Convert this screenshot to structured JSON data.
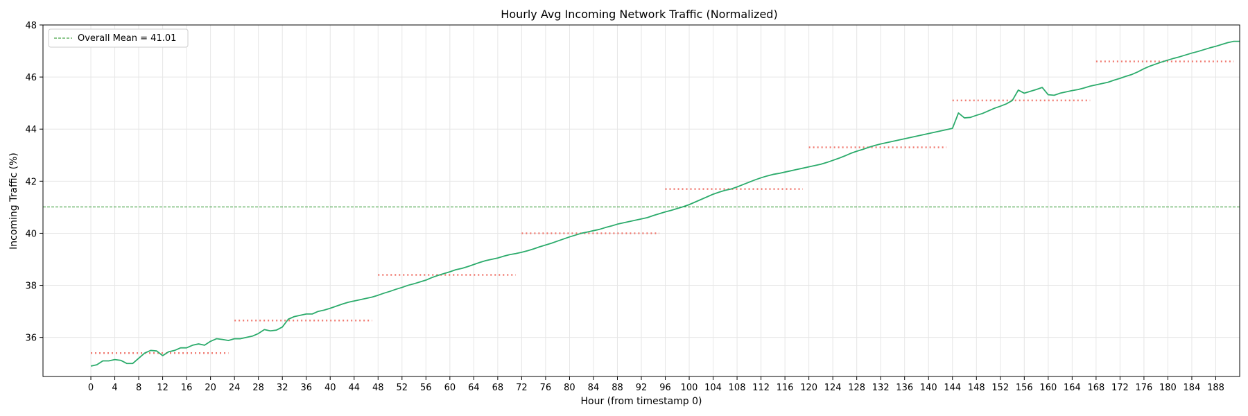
{
  "chart_data": {
    "type": "line",
    "title": "Hourly Avg Incoming Network Traffic (Normalized)",
    "xlabel": "Hour (from timestamp 0)",
    "ylabel": "Incoming Traffic (%)",
    "xlim": [
      -8,
      192
    ],
    "ylim": [
      34.5,
      48
    ],
    "xticks": [
      0,
      4,
      8,
      12,
      16,
      20,
      24,
      28,
      32,
      36,
      40,
      44,
      48,
      52,
      56,
      60,
      64,
      68,
      72,
      76,
      80,
      84,
      88,
      92,
      96,
      100,
      104,
      108,
      112,
      116,
      120,
      124,
      128,
      132,
      136,
      140,
      144,
      148,
      152,
      156,
      160,
      164,
      168,
      172,
      176,
      180,
      184,
      188
    ],
    "yticks": [
      36,
      38,
      40,
      42,
      44,
      46,
      48
    ],
    "grid": true,
    "legend": {
      "placement": "top-left",
      "entries": [
        "Overall Mean = 41.01"
      ]
    },
    "overall_mean": 41.01,
    "daily_means": [
      {
        "x_start": 0,
        "x_end": 23,
        "value": 35.4
      },
      {
        "x_start": 24,
        "x_end": 47,
        "value": 36.65
      },
      {
        "x_start": 48,
        "x_end": 71,
        "value": 38.4
      },
      {
        "x_start": 72,
        "x_end": 95,
        "value": 40.0
      },
      {
        "x_start": 96,
        "x_end": 119,
        "value": 41.7
      },
      {
        "x_start": 120,
        "x_end": 143,
        "value": 43.3
      },
      {
        "x_start": 144,
        "x_end": 167,
        "value": 45.1
      },
      {
        "x_start": 168,
        "x_end": 191,
        "value": 46.6
      }
    ],
    "series": [
      {
        "color": "#2bab6b",
        "points": [
          [
            0,
            34.9
          ],
          [
            1,
            34.95
          ],
          [
            2,
            35.1
          ],
          [
            3,
            35.1
          ],
          [
            4,
            35.15
          ],
          [
            5,
            35.12
          ],
          [
            6,
            35.0
          ],
          [
            7,
            35.0
          ],
          [
            8,
            35.2
          ],
          [
            9,
            35.4
          ],
          [
            10,
            35.5
          ],
          [
            11,
            35.48
          ],
          [
            12,
            35.3
          ],
          [
            13,
            35.45
          ],
          [
            14,
            35.5
          ],
          [
            15,
            35.6
          ],
          [
            16,
            35.6
          ],
          [
            17,
            35.7
          ],
          [
            18,
            35.75
          ],
          [
            19,
            35.7
          ],
          [
            20,
            35.85
          ],
          [
            21,
            35.95
          ],
          [
            22,
            35.92
          ],
          [
            23,
            35.88
          ],
          [
            24,
            35.95
          ],
          [
            25,
            35.95
          ],
          [
            26,
            36.0
          ],
          [
            27,
            36.05
          ],
          [
            28,
            36.15
          ],
          [
            29,
            36.3
          ],
          [
            30,
            36.25
          ],
          [
            31,
            36.28
          ],
          [
            32,
            36.4
          ],
          [
            33,
            36.7
          ],
          [
            34,
            36.8
          ],
          [
            35,
            36.85
          ],
          [
            36,
            36.9
          ],
          [
            37,
            36.9
          ],
          [
            38,
            37.0
          ],
          [
            39,
            37.05
          ],
          [
            40,
            37.12
          ],
          [
            41,
            37.2
          ],
          [
            42,
            37.28
          ],
          [
            43,
            37.35
          ],
          [
            44,
            37.4
          ],
          [
            45,
            37.45
          ],
          [
            46,
            37.5
          ],
          [
            47,
            37.55
          ],
          [
            48,
            37.62
          ],
          [
            49,
            37.7
          ],
          [
            50,
            37.77
          ],
          [
            51,
            37.85
          ],
          [
            52,
            37.92
          ],
          [
            53,
            38.0
          ],
          [
            54,
            38.06
          ],
          [
            55,
            38.13
          ],
          [
            56,
            38.2
          ],
          [
            57,
            38.3
          ],
          [
            58,
            38.38
          ],
          [
            59,
            38.45
          ],
          [
            60,
            38.52
          ],
          [
            61,
            38.6
          ],
          [
            62,
            38.65
          ],
          [
            63,
            38.72
          ],
          [
            64,
            38.8
          ],
          [
            65,
            38.88
          ],
          [
            66,
            38.95
          ],
          [
            67,
            39.0
          ],
          [
            68,
            39.05
          ],
          [
            69,
            39.12
          ],
          [
            70,
            39.18
          ],
          [
            71,
            39.22
          ],
          [
            72,
            39.27
          ],
          [
            73,
            39.33
          ],
          [
            74,
            39.4
          ],
          [
            75,
            39.48
          ],
          [
            76,
            39.55
          ],
          [
            77,
            39.62
          ],
          [
            78,
            39.7
          ],
          [
            79,
            39.78
          ],
          [
            80,
            39.86
          ],
          [
            81,
            39.93
          ],
          [
            82,
            40.0
          ],
          [
            83,
            40.05
          ],
          [
            84,
            40.1
          ],
          [
            85,
            40.15
          ],
          [
            86,
            40.22
          ],
          [
            87,
            40.28
          ],
          [
            88,
            40.35
          ],
          [
            89,
            40.4
          ],
          [
            90,
            40.45
          ],
          [
            91,
            40.5
          ],
          [
            92,
            40.55
          ],
          [
            93,
            40.6
          ],
          [
            94,
            40.68
          ],
          [
            95,
            40.75
          ],
          [
            96,
            40.82
          ],
          [
            97,
            40.88
          ],
          [
            98,
            40.95
          ],
          [
            99,
            41.02
          ],
          [
            100,
            41.1
          ],
          [
            101,
            41.2
          ],
          [
            102,
            41.3
          ],
          [
            103,
            41.4
          ],
          [
            104,
            41.5
          ],
          [
            105,
            41.58
          ],
          [
            106,
            41.65
          ],
          [
            107,
            41.7
          ],
          [
            108,
            41.78
          ],
          [
            109,
            41.87
          ],
          [
            110,
            41.96
          ],
          [
            111,
            42.05
          ],
          [
            112,
            42.13
          ],
          [
            113,
            42.2
          ],
          [
            114,
            42.26
          ],
          [
            115,
            42.3
          ],
          [
            116,
            42.35
          ],
          [
            117,
            42.4
          ],
          [
            118,
            42.45
          ],
          [
            119,
            42.5
          ],
          [
            120,
            42.55
          ],
          [
            121,
            42.6
          ],
          [
            122,
            42.65
          ],
          [
            123,
            42.72
          ],
          [
            124,
            42.8
          ],
          [
            125,
            42.88
          ],
          [
            126,
            42.97
          ],
          [
            127,
            43.07
          ],
          [
            128,
            43.15
          ],
          [
            129,
            43.22
          ],
          [
            130,
            43.3
          ],
          [
            131,
            43.37
          ],
          [
            132,
            43.43
          ],
          [
            133,
            43.48
          ],
          [
            134,
            43.53
          ],
          [
            135,
            43.58
          ],
          [
            136,
            43.63
          ],
          [
            137,
            43.68
          ],
          [
            138,
            43.73
          ],
          [
            139,
            43.78
          ],
          [
            140,
            43.83
          ],
          [
            141,
            43.88
          ],
          [
            142,
            43.93
          ],
          [
            143,
            43.98
          ],
          [
            144,
            44.03
          ],
          [
            145,
            44.62
          ],
          [
            146,
            44.43
          ],
          [
            147,
            44.45
          ],
          [
            148,
            44.53
          ],
          [
            149,
            44.6
          ],
          [
            150,
            44.7
          ],
          [
            151,
            44.8
          ],
          [
            152,
            44.88
          ],
          [
            153,
            44.97
          ],
          [
            154,
            45.1
          ],
          [
            155,
            45.5
          ],
          [
            156,
            45.38
          ],
          [
            157,
            45.45
          ],
          [
            158,
            45.52
          ],
          [
            159,
            45.6
          ],
          [
            160,
            45.32
          ],
          [
            161,
            45.3
          ],
          [
            162,
            45.38
          ],
          [
            163,
            45.43
          ],
          [
            164,
            45.48
          ],
          [
            165,
            45.52
          ],
          [
            166,
            45.58
          ],
          [
            167,
            45.65
          ],
          [
            168,
            45.7
          ],
          [
            169,
            45.75
          ],
          [
            170,
            45.8
          ],
          [
            171,
            45.88
          ],
          [
            172,
            45.95
          ],
          [
            173,
            46.03
          ],
          [
            174,
            46.1
          ],
          [
            175,
            46.2
          ],
          [
            176,
            46.32
          ],
          [
            177,
            46.42
          ],
          [
            178,
            46.5
          ],
          [
            179,
            46.58
          ],
          [
            180,
            46.65
          ],
          [
            181,
            46.72
          ],
          [
            182,
            46.78
          ],
          [
            183,
            46.85
          ],
          [
            184,
            46.92
          ],
          [
            185,
            46.98
          ],
          [
            186,
            47.05
          ],
          [
            187,
            47.12
          ],
          [
            188,
            47.18
          ],
          [
            189,
            47.25
          ],
          [
            190,
            47.32
          ],
          [
            191,
            47.37
          ],
          [
            192,
            47.37
          ]
        ]
      }
    ],
    "colors": {
      "series_line": "#2bab6b",
      "mean_line": "#1a8c1a",
      "daily_mean_line": "#f07a70",
      "grid": "#e6e6e6"
    }
  }
}
